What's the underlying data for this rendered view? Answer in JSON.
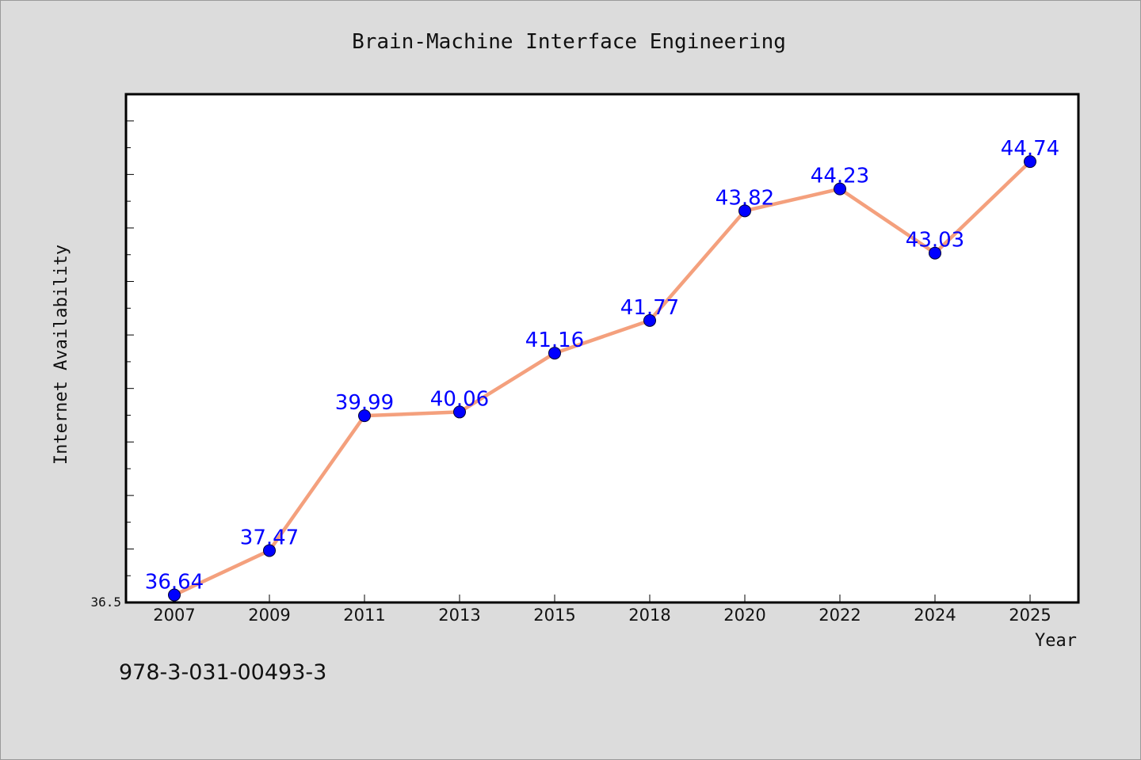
{
  "chart_data": {
    "type": "line",
    "title": "Brain-Machine Interface Engineering",
    "xlabel": "Year",
    "ylabel": "Internet Availability",
    "categories": [
      "2007",
      "2009",
      "2011",
      "2013",
      "2015",
      "2018",
      "2020",
      "2022",
      "2024",
      "2025"
    ],
    "values": [
      36.64,
      37.47,
      39.99,
      40.06,
      41.16,
      41.77,
      43.82,
      44.23,
      43.03,
      44.74
    ],
    "ylim": [
      36.5,
      46.0
    ],
    "ytick_labels": [
      "36.5"
    ],
    "grid": false,
    "legend": "none",
    "data_labels": true,
    "colors": {
      "line": "#f4a07d",
      "marker": "#0000ff",
      "label": "#0000ff"
    }
  },
  "footer": {
    "isbn": "978-3-031-00493-3"
  }
}
